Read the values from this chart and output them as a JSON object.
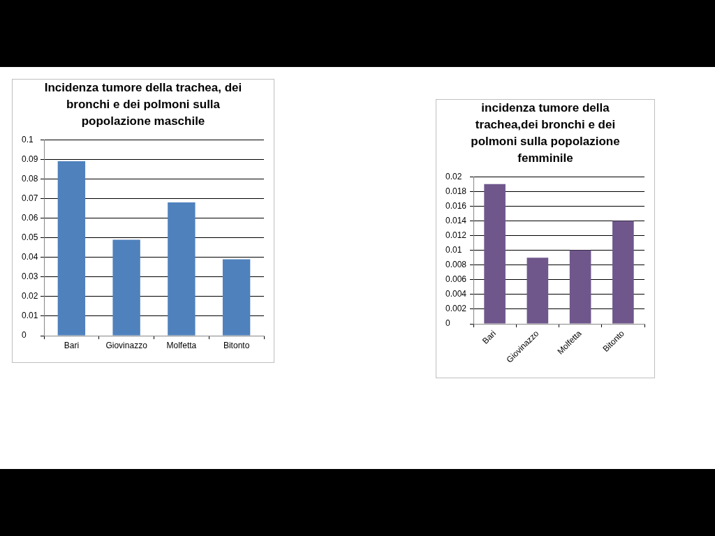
{
  "chart_data": [
    {
      "type": "bar",
      "title": "Incidenza tumore della trachea, dei bronchi e dei polmoni sulla popolazione maschile",
      "categories": [
        "Bari",
        "Giovinazzo",
        "Molfetta",
        "Bitonto"
      ],
      "values": [
        0.089,
        0.049,
        0.068,
        0.039
      ],
      "color": "#4f81bd",
      "ylim": [
        0,
        0.1
      ],
      "yticks": [
        0,
        0.01,
        0.02,
        0.03,
        0.04,
        0.05,
        0.06,
        0.07,
        0.08,
        0.09,
        0.1
      ],
      "grid": "y"
    },
    {
      "type": "bar",
      "title": "incidenza tumore della trachea,dei bronchi e dei polmoni sulla popolazione femminile",
      "categories": [
        "Bari",
        "Giovinazzo",
        "Molfetta",
        "Bitonto"
      ],
      "values": [
        0.019,
        0.009,
        0.01,
        0.014
      ],
      "color": "#6f578c",
      "ylim": [
        0,
        0.02
      ],
      "yticks": [
        0,
        0.002,
        0.004,
        0.006,
        0.008,
        0.01,
        0.012,
        0.014,
        0.016,
        0.018,
        0.02
      ],
      "grid": "y"
    }
  ]
}
